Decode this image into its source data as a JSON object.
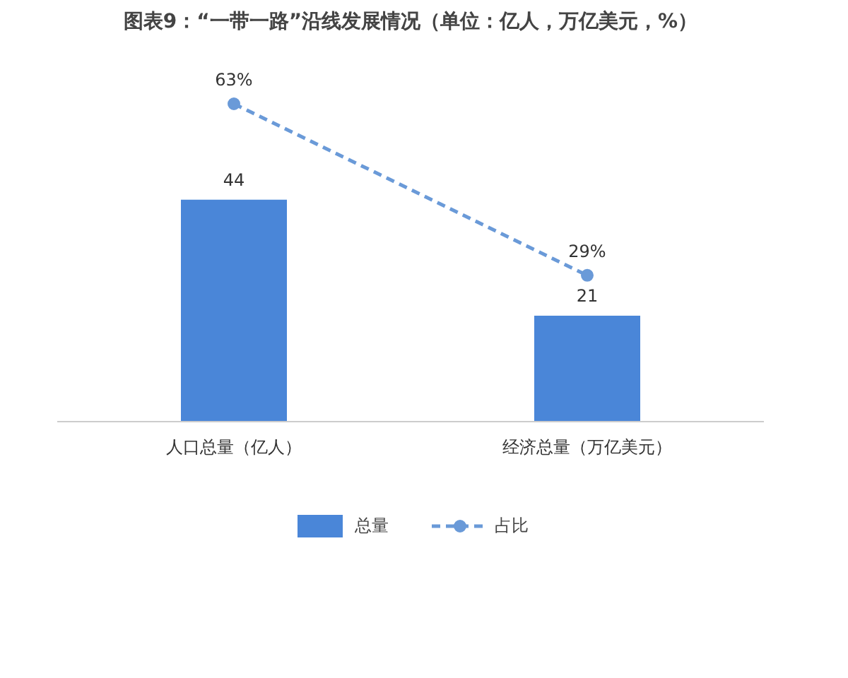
{
  "chart_data": {
    "type": "bar",
    "title": "图表9：“一带一路”沿线发展情况（单位：亿人，万亿美元，%）",
    "categories": [
      "人口总量（亿人）",
      "经济总量（万亿美元）"
    ],
    "tick_labels": "x",
    "legend": "bottom",
    "series": [
      {
        "name": "总量",
        "color": "#4a86d8",
        "values": [
          44,
          21
        ],
        "value_labels": [
          "44",
          "21"
        ]
      },
      {
        "name": "占比",
        "type": "line",
        "color": "#6a9ad8",
        "values": [
          63,
          29
        ],
        "value_labels": [
          "63%",
          "29%"
        ],
        "marker": "circle",
        "line_style": "dashed"
      }
    ]
  }
}
